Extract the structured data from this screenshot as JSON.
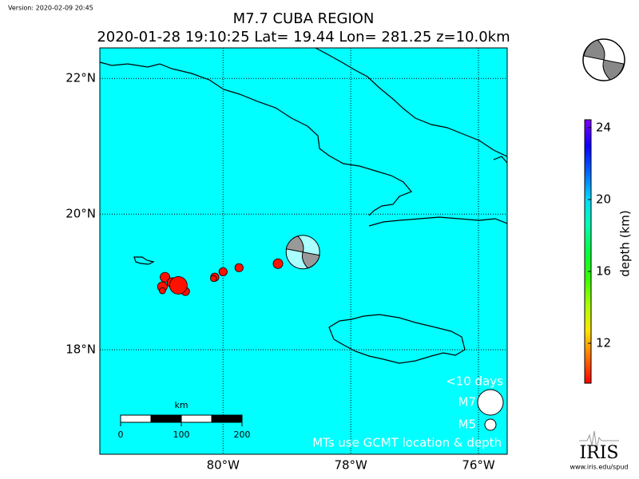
{
  "version": "Version: 2020-02-09 20:45",
  "title": "M7.7 CUBA REGION",
  "subtitle": "2020-01-28 19:10:25 Lat= 19.44 Lon= 281.25 z=10.0km",
  "map": {
    "xlim": [
      -81.93,
      -75.55
    ],
    "ylim": [
      16.46,
      22.45
    ],
    "xticks": [
      {
        "value": -80,
        "label": "80°W"
      },
      {
        "value": -78,
        "label": "78°W"
      },
      {
        "value": -76,
        "label": "76°W"
      }
    ],
    "yticks": [
      {
        "value": 22,
        "label": "22°N"
      },
      {
        "value": 20,
        "label": "20°N"
      },
      {
        "value": 18,
        "label": "18°N"
      }
    ],
    "water_color": "#00ffff",
    "events": [
      {
        "lon": -79.14,
        "lat": 19.27,
        "mag": 4.8,
        "depth": 10
      },
      {
        "lon": -79.75,
        "lat": 19.21,
        "mag": 4.6,
        "depth": 10
      },
      {
        "lon": -80.0,
        "lat": 19.15,
        "mag": 4.6,
        "depth": 10
      },
      {
        "lon": -80.13,
        "lat": 19.07,
        "mag": 4.6,
        "depth": 10
      },
      {
        "lon": -80.15,
        "lat": 19.05,
        "mag": 4.3,
        "depth": 10
      },
      {
        "lon": -80.91,
        "lat": 19.07,
        "mag": 4.8,
        "depth": 10
      },
      {
        "lon": -80.95,
        "lat": 18.93,
        "mag": 4.8,
        "depth": 10
      },
      {
        "lon": -80.95,
        "lat": 18.87,
        "mag": 4.3,
        "depth": 10
      },
      {
        "lon": -80.59,
        "lat": 18.86,
        "mag": 4.6,
        "depth": 10
      },
      {
        "lon": -80.8,
        "lat": 18.99,
        "mag": 4.8,
        "depth": 10
      },
      {
        "lon": -80.7,
        "lat": 18.95,
        "mag": 5.9,
        "depth": 10
      }
    ],
    "mechanism": {
      "lon": -78.75,
      "lat": 19.44
    }
  },
  "legend": {
    "period": "<10 days",
    "sizes": [
      {
        "value": 7,
        "label": "M7"
      },
      {
        "value": 5,
        "label": "M5"
      }
    ],
    "note": "MTs use GCMT location & depth"
  },
  "scale_bar": {
    "unit": "km",
    "ticks": [
      0,
      100,
      200
    ]
  },
  "colorbar": {
    "label": "depth (km)",
    "clim": [
      9.78,
      24.44
    ],
    "ticks": [
      12,
      16,
      20,
      24
    ]
  },
  "logo": {
    "name": "IRIS",
    "url": "www.iris.edu/spud"
  }
}
